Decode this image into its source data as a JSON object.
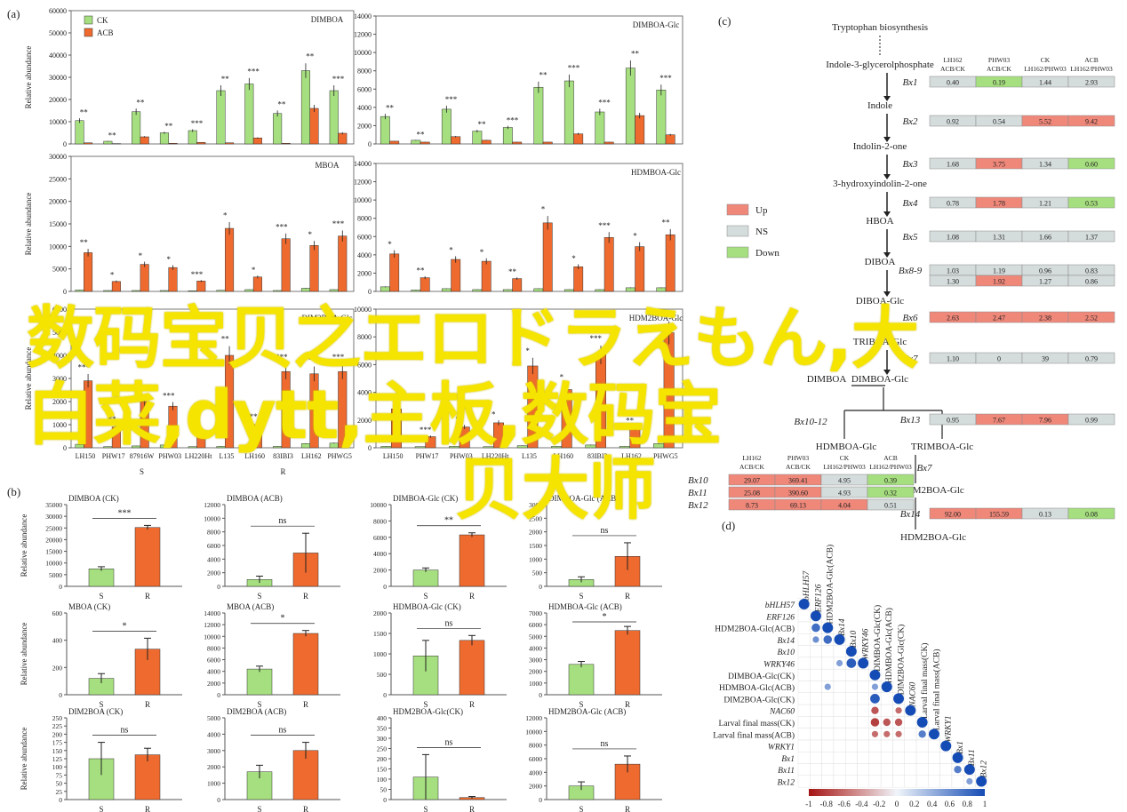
{
  "panel_labels": {
    "a": "(a)",
    "b": "(b)",
    "c": "(c)",
    "d": "(d)"
  },
  "watermark": {
    "line1": "数码宝贝之エロドラえもん,大",
    "line2": "白菜,dytt,主板,数码宝",
    "line3": "贝大师"
  },
  "colors": {
    "ck": "#a6df7f",
    "acb": "#ef6a2e",
    "up": "#f0887a",
    "ns": "#d5dcdc",
    "down": "#a6df7f",
    "axis": "#333333"
  },
  "chart_data": [
    {
      "id": "a1",
      "type": "bar",
      "title": "DIMBOA",
      "ylabel": "Relative abundance",
      "ylim": [
        0,
        60000
      ],
      "yticks": [
        0,
        10000,
        20000,
        30000,
        40000,
        50000,
        60000
      ],
      "legend": [
        "CK",
        "ACB"
      ],
      "categories": [
        "",
        "",
        "",
        "",
        "",
        "",
        "",
        "",
        "",
        ""
      ],
      "series": [
        {
          "name": "CK",
          "values": [
            10500,
            1200,
            14500,
            5000,
            6000,
            24000,
            27000,
            13700,
            33000,
            24000
          ]
        },
        {
          "name": "ACB",
          "values": [
            500,
            150,
            3200,
            300,
            700,
            500,
            2700,
            300,
            16000,
            4800
          ]
        }
      ],
      "stars": [
        "**",
        "**",
        "**",
        "**",
        "***",
        "**",
        "***",
        "**",
        "**",
        "***"
      ]
    },
    {
      "id": "a2",
      "type": "bar",
      "title": "DIMBOA-Glc",
      "ylabel": "",
      "ylim": [
        0,
        14000
      ],
      "yticks": [
        0,
        2000,
        4000,
        6000,
        8000,
        10000,
        12000,
        14000
      ],
      "categories": [
        "",
        "",
        "",
        "",
        "",
        "",
        "",
        "",
        "",
        ""
      ],
      "series": [
        {
          "name": "CK",
          "values": [
            3000,
            400,
            3800,
            1400,
            1800,
            6200,
            6900,
            3500,
            8300,
            5900
          ]
        },
        {
          "name": "ACB",
          "values": [
            300,
            200,
            800,
            400,
            200,
            200,
            1100,
            200,
            3100,
            1000
          ]
        }
      ],
      "stars": [
        "**",
        "**",
        "***",
        "**",
        "***",
        "**",
        "***",
        "***",
        "**",
        "***"
      ]
    },
    {
      "id": "a3",
      "type": "bar",
      "title": "MBOA",
      "ylabel": "Relative abundance",
      "ylim": [
        0,
        30000
      ],
      "yticks": [
        0,
        5000,
        10000,
        15000,
        20000,
        25000,
        30000
      ],
      "categories": [
        "",
        "",
        "",
        "",
        "",
        "",
        "",
        "",
        "",
        ""
      ],
      "series": [
        {
          "name": "CK",
          "values": [
            300,
            200,
            200,
            200,
            150,
            250,
            400,
            200,
            700,
            400
          ]
        },
        {
          "name": "ACB",
          "values": [
            8600,
            2200,
            6000,
            5300,
            2300,
            14000,
            3200,
            11700,
            10200,
            12300
          ]
        }
      ],
      "stars": [
        "**",
        "*",
        "*",
        "*",
        "***",
        "*",
        "*",
        "***",
        "*",
        "***"
      ]
    },
    {
      "id": "a4",
      "type": "bar",
      "title": "HDMBOA-Glc",
      "ylabel": "",
      "ylim": [
        0,
        14000
      ],
      "yticks": [
        0,
        2000,
        4000,
        6000,
        8000,
        10000,
        12000,
        14000
      ],
      "categories": [
        "",
        "",
        "",
        "",
        "",
        "",
        "",
        "",
        "",
        ""
      ],
      "series": [
        {
          "name": "CK",
          "values": [
            500,
            150,
            300,
            200,
            200,
            300,
            200,
            200,
            400,
            400
          ]
        },
        {
          "name": "ACB",
          "values": [
            4100,
            1500,
            3500,
            3300,
            1400,
            7500,
            2700,
            5900,
            4900,
            6200
          ]
        }
      ],
      "stars": [
        "*",
        "**",
        "*",
        "*",
        "**",
        "*",
        "*",
        "***",
        "*",
        "**"
      ]
    },
    {
      "id": "a5",
      "type": "bar",
      "title": "DIM2BOA-Glc",
      "ylabel": "Relative abundance",
      "ylim": [
        0,
        6000
      ],
      "yticks": [
        0,
        1000,
        2000,
        3000,
        4000,
        5000,
        6000
      ],
      "categories": [
        "LH150",
        "PHW17",
        "87916W",
        "PHW03",
        "LH220Ht",
        "L135",
        "LH160",
        "83IBI3",
        "LH162",
        "PHWG5"
      ],
      "group_labels": [
        "S",
        "R"
      ],
      "series": [
        {
          "name": "CK",
          "values": [
            150,
            50,
            80,
            120,
            50,
            60,
            100,
            60,
            180,
            200
          ]
        },
        {
          "name": "ACB",
          "values": [
            2900,
            900,
            2000,
            1800,
            750,
            4000,
            1000,
            3300,
            3200,
            3300
          ]
        }
      ],
      "stars": [
        "***",
        "**",
        "***",
        "***",
        "",
        "**",
        "**",
        "***",
        "***",
        "***"
      ]
    },
    {
      "id": "a6",
      "type": "bar",
      "title": "HDM2BOA-Glc",
      "ylabel": "",
      "ylim": [
        0,
        10000
      ],
      "yticks": [
        0,
        2000,
        4000,
        6000,
        8000,
        10000
      ],
      "categories": [
        "LH150",
        "PHW17",
        "PHW03",
        "LH220Ht",
        "L135",
        "LH160",
        "83IBI3",
        "LH162",
        "PHWG5"
      ],
      "series": [
        {
          "name": "CK",
          "values": [
            100,
            80,
            100,
            80,
            150,
            100,
            200,
            100,
            300
          ]
        },
        {
          "name": "ACB",
          "values": [
            2800,
            800,
            1500,
            1800,
            5900,
            4200,
            6700,
            1400,
            8300
          ]
        }
      ],
      "stars": [
        "**",
        "***",
        "**",
        "*",
        "*",
        "*",
        "***",
        "**",
        "***"
      ]
    },
    {
      "id": "b1",
      "type": "bar",
      "title": "DIMBOA (CK)",
      "ylabel": "Relative abundance",
      "ylim": [
        0,
        35000
      ],
      "yticks": [
        0,
        5000,
        10000,
        15000,
        20000,
        25000,
        30000,
        35000
      ],
      "categories": [
        "S",
        "R"
      ],
      "values": [
        7500,
        25200
      ],
      "errors": [
        900,
        900
      ],
      "sig": "***"
    },
    {
      "id": "b2",
      "type": "bar",
      "title": "DIMBOA (ACB)",
      "ylabel": "",
      "ylim": [
        0,
        12000
      ],
      "yticks": [
        0,
        2000,
        4000,
        6000,
        8000,
        10000,
        12000
      ],
      "categories": [
        "S",
        "R"
      ],
      "values": [
        1000,
        4900
      ],
      "errors": [
        500,
        2900
      ],
      "sig": "ns"
    },
    {
      "id": "b3",
      "type": "bar",
      "title": "DIMBOA-Glc (CK)",
      "ylabel": "",
      "ylim": [
        0,
        10000
      ],
      "yticks": [
        0,
        2000,
        4000,
        6000,
        8000,
        10000
      ],
      "categories": [
        "S",
        "R"
      ],
      "values": [
        2000,
        6300
      ],
      "errors": [
        250,
        250
      ],
      "sig": "**"
    },
    {
      "id": "b4",
      "type": "bar",
      "title": "DIMBOA-Glc (ACB)",
      "ylabel": "",
      "ylim": [
        0,
        3000
      ],
      "yticks": [
        0,
        500,
        1000,
        1500,
        2000,
        2500,
        3000
      ],
      "categories": [
        "S",
        "R"
      ],
      "values": [
        250,
        1100
      ],
      "errors": [
        100,
        500
      ],
      "sig": "ns"
    },
    {
      "id": "b5",
      "type": "bar",
      "title": "MBOA (CK)",
      "ylabel": "Relative abundance",
      "ylim": [
        0,
        600
      ],
      "yticks": [
        0,
        200,
        400,
        600
      ],
      "categories": [
        "S",
        "R"
      ],
      "values": [
        120,
        335
      ],
      "errors": [
        35,
        80
      ],
      "sig": "*"
    },
    {
      "id": "b6",
      "type": "bar",
      "title": "MBOA (ACB)",
      "ylabel": "",
      "ylim": [
        0,
        14000
      ],
      "yticks": [
        0,
        2000,
        4000,
        6000,
        8000,
        10000,
        12000,
        14000
      ],
      "categories": [
        "S",
        "R"
      ],
      "values": [
        4400,
        10500
      ],
      "errors": [
        500,
        500
      ],
      "sig": "*"
    },
    {
      "id": "b7",
      "type": "bar",
      "title": "HDMBOA-Glc (CK)",
      "ylabel": "",
      "ylim": [
        0,
        2000
      ],
      "yticks": [
        0,
        500,
        1000,
        1500,
        2000
      ],
      "categories": [
        "S",
        "R"
      ],
      "values": [
        950,
        1330
      ],
      "errors": [
        380,
        120
      ],
      "sig": "ns"
    },
    {
      "id": "b8",
      "type": "bar",
      "title": "HDMBOA-Glc (ACB)",
      "ylabel": "",
      "ylim": [
        0,
        7000
      ],
      "yticks": [
        0,
        1000,
        2000,
        3000,
        4000,
        5000,
        6000,
        7000
      ],
      "categories": [
        "S",
        "R"
      ],
      "values": [
        2600,
        5500
      ],
      "errors": [
        250,
        350
      ],
      "sig": "*"
    },
    {
      "id": "b9",
      "type": "bar",
      "title": "DIM2BOA (CK)",
      "ylabel": "Relative abundance",
      "ylim": [
        0,
        250
      ],
      "yticks": [
        0,
        25,
        50,
        75,
        100,
        125,
        150,
        175,
        200,
        225,
        250
      ],
      "categories": [
        "S",
        "R"
      ],
      "values": [
        125,
        137
      ],
      "errors": [
        50,
        20
      ],
      "sig": "ns"
    },
    {
      "id": "b10",
      "type": "bar",
      "title": "DIM2BOA (ACB)",
      "ylabel": "",
      "ylim": [
        0,
        5000
      ],
      "yticks": [
        0,
        1000,
        2000,
        3000,
        4000,
        5000
      ],
      "categories": [
        "S",
        "R"
      ],
      "values": [
        1700,
        3000
      ],
      "errors": [
        400,
        500
      ],
      "sig": "ns"
    },
    {
      "id": "b11",
      "type": "bar",
      "title": "HDM2BOA-Glc(CK)",
      "ylabel": "",
      "ylim": [
        0,
        400
      ],
      "yticks": [
        0,
        50,
        100,
        150,
        200,
        250,
        300,
        350,
        400
      ],
      "categories": [
        "S",
        "R"
      ],
      "values": [
        110,
        10
      ],
      "errors": [
        110,
        5
      ],
      "sig": "ns"
    },
    {
      "id": "b12",
      "type": "bar",
      "title": "HDM2BOA-Glc (ACB)",
      "ylabel": "",
      "ylim": [
        0,
        12000
      ],
      "yticks": [
        0,
        2000,
        4000,
        6000,
        8000,
        10000,
        12000
      ],
      "categories": [
        "S",
        "R"
      ],
      "values": [
        2000,
        5200
      ],
      "errors": [
        600,
        1200
      ],
      "sig": "ns"
    }
  ],
  "pathway": {
    "top": "Tryptophan biosynthesis",
    "nodes": [
      "Indole-3-glycerolphosphate",
      "Indole",
      "Indolin-2-one",
      "3-hydroxyindolin-2-one",
      "HBOA",
      "DIBOA",
      "DIBOA-Glc",
      "TRIBOA-Glc",
      "DIMBOA-Glc",
      "DIMBOA",
      "HDMBOA-Glc",
      "TRIMBOA-Glc",
      "DIM2BOA-Glc",
      "HDM2BOA-Glc"
    ],
    "header_cols": [
      "LH162\nACB/CK",
      "PHW03\nACB/CK",
      "CK\nLH162/PHW03",
      "ACB\nLH162/PHW03"
    ],
    "legend": [
      {
        "label": "Up",
        "status": "up"
      },
      {
        "label": "NS",
        "status": "ns"
      },
      {
        "label": "Down",
        "status": "down"
      }
    ],
    "genes": [
      {
        "name": "Bx1",
        "values": [
          "0.40",
          "0.19",
          "1.44",
          "2.93"
        ],
        "status": [
          "ns",
          "down",
          "ns",
          "ns"
        ]
      },
      {
        "name": "Bx2",
        "values": [
          "0.92",
          "0.54",
          "5.52",
          "9.42"
        ],
        "status": [
          "ns",
          "ns",
          "up",
          "up"
        ]
      },
      {
        "name": "Bx3",
        "values": [
          "1.68",
          "3.75",
          "1.34",
          "0.60"
        ],
        "status": [
          "ns",
          "up",
          "ns",
          "down"
        ]
      },
      {
        "name": "Bx4",
        "values": [
          "0.78",
          "1.78",
          "1.21",
          "0.53"
        ],
        "status": [
          "ns",
          "up",
          "ns",
          "down"
        ]
      },
      {
        "name": "Bx5",
        "values": [
          "1.08",
          "1.31",
          "1.66",
          "1.37"
        ],
        "status": [
          "ns",
          "ns",
          "ns",
          "ns"
        ]
      },
      {
        "name": "Bx8-9",
        "values": [
          "1.03",
          "1.19",
          "0.96",
          "0.83"
        ],
        "status": [
          "ns",
          "ns",
          "ns",
          "ns"
        ]
      },
      {
        "name": "",
        "values": [
          "1.30",
          "1.92",
          "1.27",
          "0.86"
        ],
        "status": [
          "ns",
          "up",
          "ns",
          "ns"
        ]
      },
      {
        "name": "Bx6",
        "values": [
          "2.63",
          "2.47",
          "2.38",
          "2.52"
        ],
        "status": [
          "up",
          "up",
          "up",
          "up"
        ]
      },
      {
        "name": "Bx7",
        "values": [
          "1.10",
          "0",
          "39",
          "0.79"
        ],
        "status": [
          "ns",
          "ns",
          "ns",
          "ns"
        ]
      },
      {
        "name": "Bx13",
        "values": [
          "0.95",
          "7.67",
          "7.96",
          "0.99"
        ],
        "status": [
          "ns",
          "up",
          "up",
          "ns"
        ]
      },
      {
        "name": "Bx14",
        "values": [
          "92.00",
          "155.59",
          "0.13",
          "0.08"
        ],
        "status": [
          "up",
          "up",
          "ns",
          "down"
        ]
      }
    ],
    "left_table": {
      "header_cols": [
        "LH162\nACB/CK",
        "PHW03\nACB/CK",
        "CK\nLH162/PHW03",
        "ACB\nLH162/PHW03"
      ],
      "rows": [
        {
          "name": "Bx10",
          "values": [
            "29.07",
            "369.41",
            "4.95",
            "0.39"
          ],
          "status": [
            "up",
            "up",
            "ns",
            "down"
          ]
        },
        {
          "name": "Bx11",
          "values": [
            "25.08",
            "390.60",
            "4.93",
            "0.32"
          ],
          "status": [
            "up",
            "up",
            "ns",
            "down"
          ]
        },
        {
          "name": "Bx12",
          "values": [
            "8.73",
            "69.13",
            "4.04",
            "0.51"
          ],
          "status": [
            "up",
            "up",
            "up",
            "ns"
          ]
        }
      ]
    },
    "edge_labels": [
      "Bx10-12",
      "Bx7"
    ]
  },
  "correlation": {
    "labels": [
      "bHLH57",
      "ERF126",
      "HDM2BOA-Glc(ACB)",
      "Bx14",
      "Bx10",
      "WRKY46",
      "DIMBOA-Glc(CK)",
      "HDMBOA-Glc(ACB)",
      "DIM2BOA-Glc(CK)",
      "NAC60",
      "Larval final mass(CK)",
      "Larval final mass(ACB)",
      "WRKY1",
      "Bx1",
      "Bx11",
      "Bx12"
    ],
    "italic": [
      true,
      true,
      false,
      true,
      true,
      true,
      false,
      false,
      false,
      true,
      false,
      false,
      true,
      true,
      true,
      true
    ],
    "cells": [
      [
        2,
        1,
        0.8
      ],
      [
        3,
        1,
        0.6
      ],
      [
        3,
        2,
        0.8
      ],
      [
        5,
        4,
        0.9
      ],
      [
        5,
        3,
        0.5
      ],
      [
        7,
        2,
        0.5
      ],
      [
        7,
        6,
        0.5
      ],
      [
        8,
        6,
        0.9
      ],
      [
        9,
        6,
        -0.7
      ],
      [
        9,
        8,
        -0.6
      ],
      [
        10,
        6,
        -0.8
      ],
      [
        10,
        7,
        -0.7
      ],
      [
        10,
        8,
        -0.7
      ],
      [
        11,
        6,
        -0.6
      ],
      [
        11,
        7,
        -0.6
      ],
      [
        11,
        8,
        -0.6
      ],
      [
        11,
        10,
        0.7
      ],
      [
        14,
        13,
        0.7
      ],
      [
        15,
        14,
        0.5
      ]
    ],
    "colorbar_ticks": [
      "-1",
      "-0.8",
      "-0.6",
      "-0.4",
      "-0.2",
      "0",
      "0.2",
      "0.4",
      "0.6",
      "0.8",
      "1"
    ]
  }
}
